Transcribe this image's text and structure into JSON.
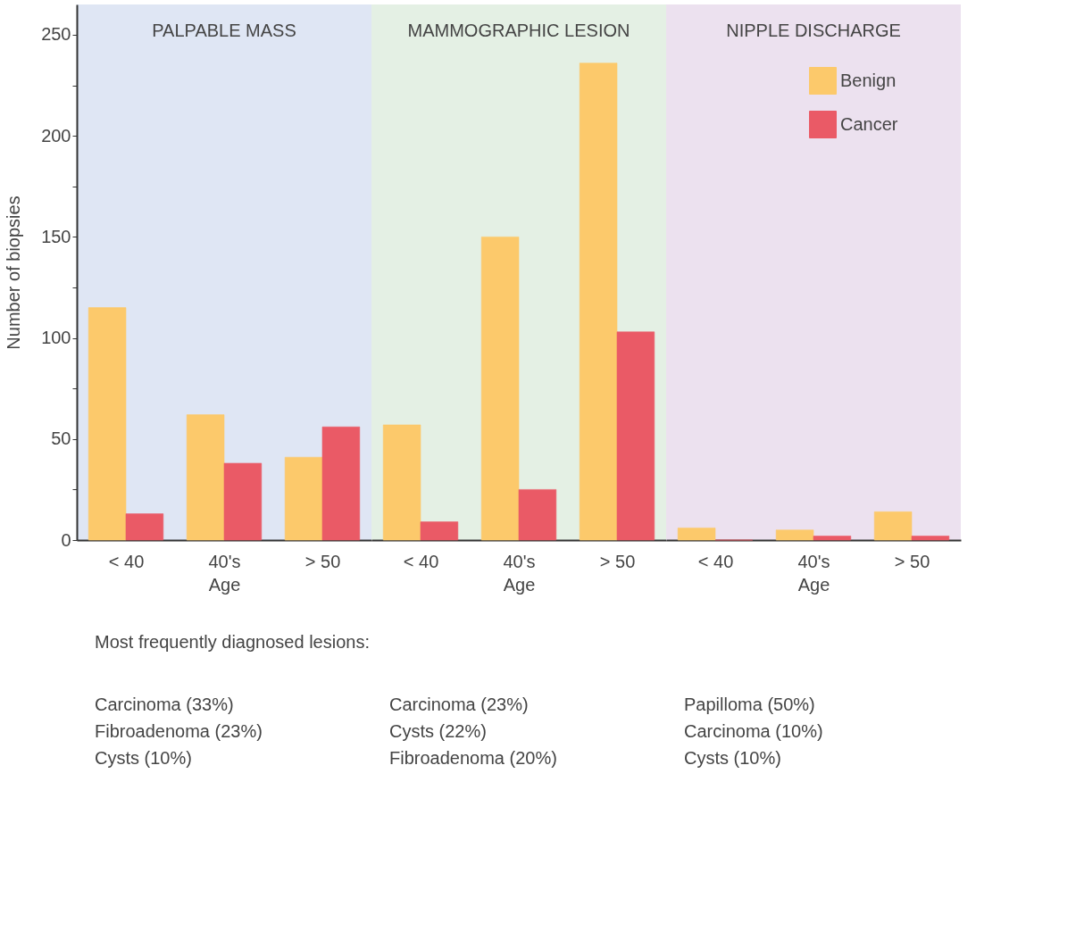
{
  "chart_data": [
    {
      "type": "bar",
      "title": "PALPABLE MASS",
      "xlabel": "Age",
      "ylabel": "Number of biopsies",
      "categories": [
        "< 40",
        "40's",
        "> 50"
      ],
      "series": [
        {
          "color": "#fcc96b",
          "values": [
            115,
            62,
            41
          ]
        },
        {
          "color": "#ea5a66",
          "values": [
            13,
            38,
            56
          ]
        }
      ],
      "ylim": [
        0,
        265
      ],
      "yticks": [
        0,
        {
          "value": 25,
          "label": null
        },
        50,
        {
          "value": 75,
          "label": null
        },
        100,
        {
          "value": 125,
          "label": null
        },
        150,
        {
          "value": 175,
          "label": null
        },
        200,
        {
          "value": 225,
          "label": null
        },
        250
      ],
      "legend": false,
      "grid": false,
      "annotations": [
        "Most frequently diagnosed lesions:",
        "Carcinoma (33%)",
        "Fibroadenoma (23%)",
        "Cysts (10%)"
      ]
    },
    {
      "type": "bar",
      "title": "MAMMOGRAPHIC LESION",
      "xlabel": "Age",
      "categories": [
        "< 40",
        "40's",
        "> 50"
      ],
      "series": [
        {
          "color": "#fcc96b",
          "values": [
            57,
            150,
            236
          ]
        },
        {
          "color": "#ea5a66",
          "values": [
            9,
            25,
            103
          ]
        }
      ],
      "ylim": [
        0,
        265
      ],
      "tick_labels": "x",
      "legend": false,
      "grid": false,
      "annotations": [
        "Carcinoma (23%)",
        "Cysts (22%)",
        "Fibroadenoma (20%)"
      ]
    },
    {
      "type": "bar",
      "title": "NIPPLE DISCHARGE",
      "xlabel": "Age",
      "categories": [
        "< 40",
        "40's",
        "> 50"
      ],
      "series": [
        {
          "name": "Benign",
          "color": "#fcc96b",
          "values": [
            6,
            5,
            14
          ]
        },
        {
          "name": "Cancer",
          "color": "#ea5a66",
          "values": [
            0,
            2,
            2
          ]
        }
      ],
      "ylim": [
        0,
        265
      ],
      "tick_labels": "x",
      "legend": "top right",
      "grid": false,
      "annotations": [
        "Papilloma (50%)",
        "Carcinoma (10%)",
        "Cysts (10%)"
      ]
    }
  ]
}
